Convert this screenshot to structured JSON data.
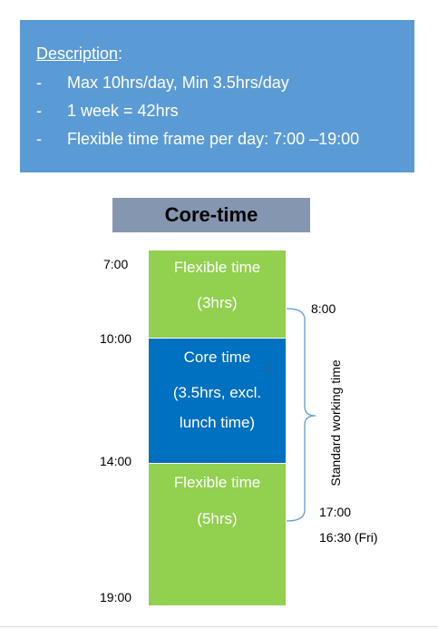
{
  "description": {
    "title": "Description",
    "title_suffix": ":",
    "items": [
      {
        "bullet": "-",
        "text": "Max 10hrs/day, Min 3.5hrs/day"
      },
      {
        "bullet": "-",
        "text": "1 week = 42hrs"
      },
      {
        "bullet": "-",
        "text": "Flexible time frame per day: 7:00 –19:00"
      }
    ]
  },
  "header": {
    "title": "Core-time"
  },
  "blocks": {
    "flexible_morning": {
      "name": "Flexible time",
      "duration": "(3hrs)"
    },
    "core": {
      "name": "Core time",
      "duration_line1": "(3.5hrs, excl.",
      "duration_line2": "lunch time)"
    },
    "flexible_afternoon": {
      "name": "Flexible time",
      "duration": "(5hrs)"
    }
  },
  "time_labels": {
    "start": "7:00",
    "core_start": "10:00",
    "core_end": "14:00",
    "end": "19:00"
  },
  "standard_working_time": {
    "label": "Standard working time",
    "start": "8:00",
    "end": "17:00",
    "end_friday": "16:30 (Fri)"
  },
  "colors": {
    "description_bg": "#5b9bd5",
    "header_bg": "#8496b0",
    "flexible": "#92d050",
    "core": "#0070c0",
    "brace": "#5b9bd5"
  }
}
